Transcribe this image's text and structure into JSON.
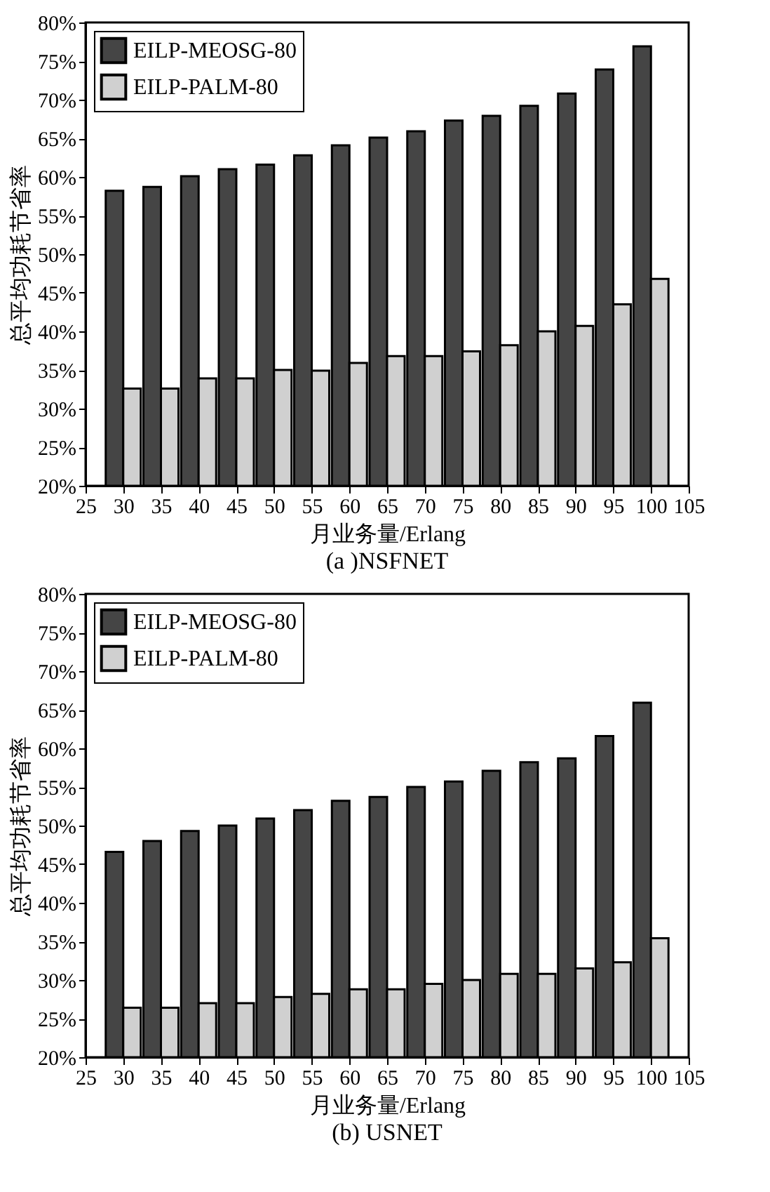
{
  "chart_data": [
    {
      "type": "bar",
      "title": "(a )NSFNET",
      "xlabel": "月业务量/Erlang",
      "ylabel": "总平均功耗节省率",
      "x": [
        30,
        35,
        40,
        45,
        50,
        55,
        60,
        65,
        70,
        75,
        80,
        85,
        90,
        95,
        100
      ],
      "series": [
        {
          "name": "EILP-MEOSG-80",
          "color": "#454545",
          "values": [
            58.2,
            58.7,
            60.1,
            61.0,
            61.6,
            62.8,
            64.1,
            65.1,
            65.9,
            67.3,
            67.9,
            69.2,
            70.8,
            73.9,
            76.9
          ]
        },
        {
          "name": "EILP-PALM-80",
          "color": "#d0d0d0",
          "values": [
            32.6,
            32.6,
            33.9,
            33.9,
            35.0,
            34.9,
            35.9,
            36.8,
            36.8,
            37.4,
            38.2,
            40.0,
            40.7,
            43.5,
            46.8
          ]
        }
      ],
      "xlim": [
        25,
        105
      ],
      "xticks": [
        25,
        30,
        35,
        40,
        45,
        50,
        55,
        60,
        65,
        70,
        75,
        80,
        85,
        90,
        95,
        100,
        105
      ],
      "ylim": [
        20,
        80
      ],
      "yticks": [
        {
          "value": 20,
          "label": "20%"
        },
        {
          "value": 25,
          "label": "25%"
        },
        {
          "value": 30,
          "label": "30%"
        },
        {
          "value": 35,
          "label": "35%"
        },
        {
          "value": 40,
          "label": "40%"
        },
        {
          "value": 45,
          "label": "45%"
        },
        {
          "value": 50,
          "label": "50%"
        },
        {
          "value": 55,
          "label": "55%"
        },
        {
          "value": 60,
          "label": "60%"
        },
        {
          "value": 65,
          "label": "65%"
        },
        {
          "value": 70,
          "label": "70%"
        },
        {
          "value": 75,
          "label": "75%"
        },
        {
          "value": 80,
          "label": "80%"
        }
      ],
      "grid": false,
      "legend": "top left"
    },
    {
      "type": "bar",
      "title": "(b) USNET",
      "xlabel": "月业务量/Erlang",
      "ylabel": "总平均功耗节省率",
      "x": [
        30,
        35,
        40,
        45,
        50,
        55,
        60,
        65,
        70,
        75,
        80,
        85,
        90,
        95,
        100
      ],
      "series": [
        {
          "name": "EILP-MEOSG-80",
          "color": "#454545",
          "values": [
            46.6,
            48.0,
            49.3,
            50.0,
            50.9,
            52.0,
            53.2,
            53.7,
            55.0,
            55.7,
            57.1,
            58.2,
            58.7,
            61.6,
            65.9
          ]
        },
        {
          "name": "EILP-PALM-80",
          "color": "#d0d0d0",
          "values": [
            26.4,
            26.4,
            27.0,
            27.0,
            27.8,
            28.2,
            28.8,
            28.8,
            29.5,
            30.0,
            30.8,
            30.8,
            31.5,
            32.3,
            35.4
          ]
        }
      ],
      "xlim": [
        25,
        105
      ],
      "xticks": [
        25,
        30,
        35,
        40,
        45,
        50,
        55,
        60,
        65,
        70,
        75,
        80,
        85,
        90,
        95,
        100,
        105
      ],
      "ylim": [
        20,
        80
      ],
      "yticks": [
        {
          "value": 20,
          "label": "20%"
        },
        {
          "value": 25,
          "label": "25%"
        },
        {
          "value": 30,
          "label": "30%"
        },
        {
          "value": 35,
          "label": "35%"
        },
        {
          "value": 40,
          "label": "40%"
        },
        {
          "value": 45,
          "label": "45%"
        },
        {
          "value": 50,
          "label": "50%"
        },
        {
          "value": 55,
          "label": "55%"
        },
        {
          "value": 60,
          "label": "60%"
        },
        {
          "value": 65,
          "label": "65%"
        },
        {
          "value": 70,
          "label": "70%"
        },
        {
          "value": 75,
          "label": "75%"
        },
        {
          "value": 80,
          "label": "80%"
        }
      ],
      "grid": false,
      "legend": "top left"
    }
  ]
}
